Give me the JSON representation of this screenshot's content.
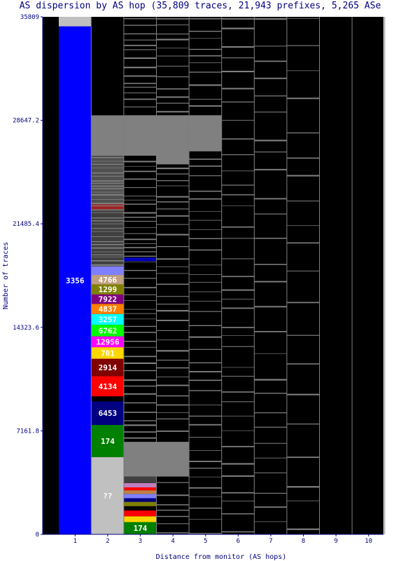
{
  "chart_data": {
    "type": "bar",
    "stacked": true,
    "title": "AS dispersion by AS hop (35,809 traces, 21,943 prefixes, 5,265 ASe",
    "xlabel": "Distance from monitor (AS hops)",
    "ylabel": "Number of traces",
    "ylim": [
      0,
      35809
    ],
    "yticks": [
      "0",
      "7161.8",
      "14323.6",
      "21485.4",
      "28647.2",
      "35809"
    ],
    "ytick_values": [
      0,
      7161.8,
      14323.6,
      21485.4,
      28647.2,
      35809
    ],
    "categories": [
      "1",
      "2",
      "3",
      "4",
      "5",
      "6",
      "7",
      "8",
      "9",
      "10"
    ],
    "background_color": "#000000",
    "thin_segment_color": "#808080",
    "hop_columns": [
      {
        "hop": "1",
        "segments": [
          {
            "label": "3356",
            "from": 0,
            "to": 35150,
            "color": "#0000ff",
            "text_color": "#ffffff"
          },
          {
            "label": "",
            "from": 35150,
            "to": 35809,
            "color": "#c0c0c0"
          }
        ]
      },
      {
        "hop": "2",
        "segments": [
          {
            "label": "??",
            "from": 0,
            "to": 5350,
            "color": "#c0c0c0",
            "text_color": "#ffffff"
          },
          {
            "label": "174",
            "from": 5350,
            "to": 7570,
            "color": "#008000",
            "text_color": "#ffffff"
          },
          {
            "label": "6453",
            "from": 7570,
            "to": 9200,
            "color": "#000080",
            "text_color": "#ffffff"
          },
          {
            "label": "",
            "from": 9200,
            "to": 9550,
            "color": "#000000"
          },
          {
            "label": "4134",
            "from": 9550,
            "to": 10950,
            "color": "#ff0000",
            "text_color": "#ffffff"
          },
          {
            "label": "2914",
            "from": 10950,
            "to": 12150,
            "color": "#800000",
            "text_color": "#ffffff"
          },
          {
            "label": "701",
            "from": 12150,
            "to": 12950,
            "color": "#ffd700",
            "text_color": "#ffffff"
          },
          {
            "label": "12956",
            "from": 12950,
            "to": 13700,
            "color": "#ff00ff",
            "text_color": "#ffffff"
          },
          {
            "label": "6762",
            "from": 13700,
            "to": 14500,
            "color": "#00ff00",
            "text_color": "#ffffff"
          },
          {
            "label": "3257",
            "from": 14500,
            "to": 15250,
            "color": "#00ffff",
            "text_color": "#ffffff"
          },
          {
            "label": "4837",
            "from": 15250,
            "to": 15950,
            "color": "#ff8000",
            "text_color": "#ffffff"
          },
          {
            "label": "7922",
            "from": 15950,
            "to": 16600,
            "color": "#800080",
            "text_color": "#ffffff"
          },
          {
            "label": "1299",
            "from": 16600,
            "to": 17300,
            "color": "#808000",
            "text_color": "#ffffff"
          },
          {
            "label": "4766",
            "from": 17300,
            "to": 17950,
            "color": "#c0a080",
            "text_color": "#ffffff"
          },
          {
            "label": "",
            "from": 17950,
            "to": 18550,
            "color": "#8080ff"
          },
          {
            "label": "",
            "from": 18550,
            "to": 22500,
            "color": "#404040"
          },
          {
            "label": "",
            "from": 22500,
            "to": 22850,
            "color": "#a02020"
          },
          {
            "label": "",
            "from": 22850,
            "to": 26200,
            "color": "#505050"
          },
          {
            "label": "",
            "from": 26200,
            "to": 29000,
            "color": "#808080"
          },
          {
            "label": "",
            "from": 29000,
            "to": 35809,
            "color": "#000000"
          }
        ]
      },
      {
        "hop": "3",
        "segments": [
          {
            "label": "174",
            "from": 0,
            "to": 850,
            "color": "#008000",
            "text_color": "#ffffff"
          },
          {
            "label": "",
            "from": 850,
            "to": 1250,
            "color": "#ffd700"
          },
          {
            "label": "",
            "from": 1250,
            "to": 1650,
            "color": "#ff0000"
          },
          {
            "label": "",
            "from": 1650,
            "to": 1950,
            "color": "#000000"
          },
          {
            "label": "",
            "from": 1950,
            "to": 2250,
            "color": "#808000"
          },
          {
            "label": "",
            "from": 2250,
            "to": 2500,
            "color": "#000080"
          },
          {
            "label": "",
            "from": 2500,
            "to": 2800,
            "color": "#8080ff"
          },
          {
            "label": "",
            "from": 2800,
            "to": 3050,
            "color": "#c08040"
          },
          {
            "label": "",
            "from": 3050,
            "to": 3250,
            "color": "#ff0000"
          },
          {
            "label": "",
            "from": 3250,
            "to": 3550,
            "color": "#c080c0"
          },
          {
            "label": "",
            "from": 3550,
            "to": 4000,
            "color": "#404040"
          },
          {
            "label": "",
            "from": 4000,
            "to": 6400,
            "color": "#808080"
          },
          {
            "label": "",
            "from": 18900,
            "to": 19150,
            "color": "#0000c0"
          },
          {
            "label": "",
            "from": 26200,
            "to": 29000,
            "color": "#808080"
          }
        ]
      },
      {
        "hop": "4",
        "segments": [
          {
            "label": "",
            "from": 4000,
            "to": 6400,
            "color": "#808080"
          },
          {
            "label": "",
            "from": 25600,
            "to": 29000,
            "color": "#808080"
          }
        ]
      },
      {
        "hop": "5",
        "segments": [
          {
            "label": "",
            "from": 26500,
            "to": 29000,
            "color": "#808080"
          }
        ]
      },
      {
        "hop": "6",
        "segments": []
      },
      {
        "hop": "7",
        "segments": []
      },
      {
        "hop": "8",
        "segments": []
      },
      {
        "hop": "9",
        "segments": []
      },
      {
        "hop": "10",
        "segments": []
      }
    ]
  }
}
